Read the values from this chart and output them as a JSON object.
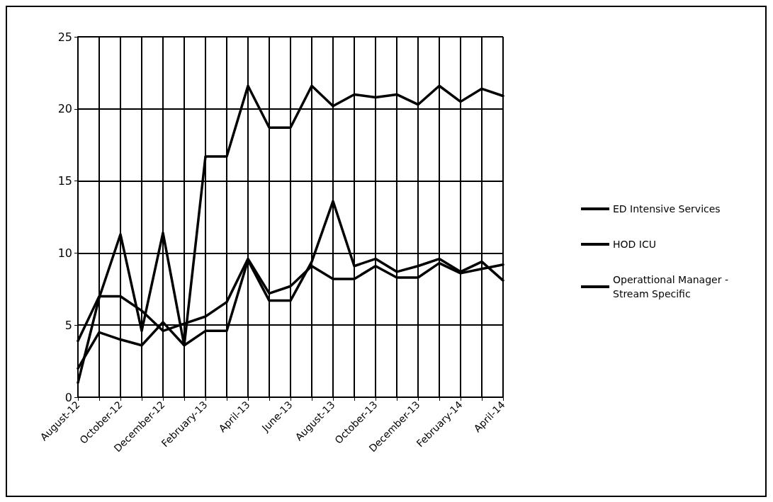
{
  "chart_data": {
    "type": "line",
    "categories": [
      "August-12",
      null,
      "October-12",
      null,
      "December-12",
      null,
      "February-13",
      null,
      "April-13",
      null,
      "June-13",
      null,
      "August-13",
      null,
      "October-13",
      null,
      "December-13",
      null,
      "February-14",
      null,
      "April-14"
    ],
    "series": [
      {
        "name": "ED Intensive Services",
        "color": "#000000",
        "values": [
          1.0,
          6.9,
          11.3,
          4.6,
          11.4,
          3.6,
          16.7,
          16.7,
          21.6,
          18.7,
          18.7,
          21.6,
          20.2,
          21.0,
          20.8,
          21.0,
          20.3,
          21.6,
          20.5,
          21.4,
          20.9
        ]
      },
      {
        "name": "HOD ICU",
        "color": "#000000",
        "values": [
          3.9,
          7.0,
          7.0,
          6.0,
          4.6,
          5.1,
          5.6,
          6.6,
          9.6,
          7.2,
          7.7,
          9.1,
          8.2,
          8.2,
          9.1,
          8.3,
          8.3,
          9.3,
          8.6,
          8.9,
          9.2
        ]
      },
      {
        "name": "Operattional Manager - Stream Specific",
        "color": "#000000",
        "values": [
          2.0,
          4.5,
          4.0,
          3.6,
          5.2,
          3.6,
          4.6,
          4.6,
          9.5,
          6.7,
          6.7,
          9.4,
          13.6,
          9.1,
          9.6,
          8.7,
          9.1,
          9.6,
          8.7,
          9.4,
          8.1
        ]
      }
    ],
    "ylim": [
      0,
      25
    ],
    "yticks": [
      0,
      5,
      10,
      15,
      20,
      25
    ],
    "grid": true,
    "legend": "right",
    "marker": "none",
    "line_style": "solid"
  }
}
